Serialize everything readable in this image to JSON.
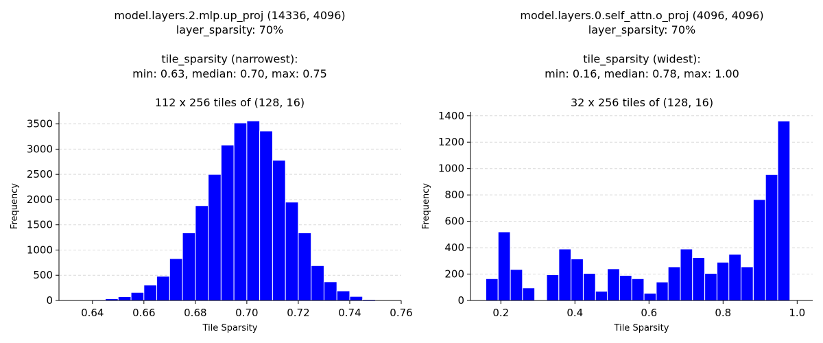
{
  "chart_data": [
    {
      "type": "bar",
      "title_lines": [
        "model.layers.2.mlp.up_proj (14336, 4096)",
        "layer_sparsity: 70%",
        "",
        "tile_sparsity (narrowest):",
        "min: 0.63, median: 0.70, max: 0.75",
        "",
        "112 x 256 tiles of (128, 16)"
      ],
      "xlabel": "Tile Sparsity",
      "ylabel": "Frequency",
      "xlim": [
        0.627,
        0.76
      ],
      "ylim": [
        0,
        3740
      ],
      "xticks": [
        0.64,
        0.66,
        0.68,
        0.7,
        0.72,
        0.74,
        0.76
      ],
      "xtick_labels": [
        "0.64",
        "0.66",
        "0.68",
        "0.70",
        "0.72",
        "0.74",
        "0.76"
      ],
      "yticks": [
        0,
        500,
        1000,
        1500,
        2000,
        2500,
        3000,
        3500
      ],
      "ytick_labels": [
        "0",
        "500",
        "1000",
        "1500",
        "2000",
        "2500",
        "3000",
        "3500"
      ],
      "grid": "y-dashed",
      "color": "#0000ff",
      "bin_width": 0.005,
      "bins": [
        0.6325,
        0.6375,
        0.6425,
        0.6475,
        0.6525,
        0.6575,
        0.6625,
        0.6675,
        0.6725,
        0.6775,
        0.6825,
        0.6875,
        0.6925,
        0.6975,
        0.7025,
        0.7075,
        0.7125,
        0.7175,
        0.7225,
        0.7275,
        0.7325,
        0.7375,
        0.7425,
        0.7475
      ],
      "values": [
        2,
        5,
        15,
        35,
        75,
        160,
        305,
        480,
        830,
        1340,
        1880,
        2500,
        3080,
        3520,
        3560,
        3360,
        2780,
        1950,
        1340,
        690,
        370,
        190,
        80,
        20
      ]
    },
    {
      "type": "bar",
      "title_lines": [
        "model.layers.0.self_attn.o_proj (4096, 4096)",
        "layer_sparsity: 70%",
        "",
        "tile_sparsity (widest):",
        "min: 0.16, median: 0.78, max: 1.00",
        "",
        "32 x 256 tiles of (128, 16)"
      ],
      "xlabel": "Tile Sparsity",
      "ylabel": "Frequency",
      "xlim": [
        0.118,
        1.042
      ],
      "ylim": [
        0,
        1430
      ],
      "xticks": [
        0.2,
        0.4,
        0.6,
        0.8,
        1.0
      ],
      "xtick_labels": [
        "0.2",
        "0.4",
        "0.6",
        "0.8",
        "1.0"
      ],
      "yticks": [
        0,
        200,
        400,
        600,
        800,
        1000,
        1200,
        1400
      ],
      "ytick_labels": [
        "0",
        "200",
        "400",
        "600",
        "800",
        "1000",
        "1200",
        "1400"
      ],
      "grid": "y-dashed",
      "color": "#0000ff",
      "bin_width": 0.0328,
      "bins": [
        0.176,
        0.209,
        0.242,
        0.275,
        0.308,
        0.34,
        0.373,
        0.406,
        0.439,
        0.472,
        0.504,
        0.537,
        0.57,
        0.603,
        0.636,
        0.668,
        0.701,
        0.734,
        0.767,
        0.8,
        0.832,
        0.865,
        0.898,
        0.931,
        0.964,
        0.996
      ],
      "values": [
        165,
        520,
        235,
        95,
        0,
        195,
        390,
        315,
        205,
        70,
        240,
        190,
        165,
        55,
        140,
        255,
        390,
        325,
        205,
        290,
        350,
        255,
        765,
        955,
        1360,
        0
      ]
    }
  ]
}
